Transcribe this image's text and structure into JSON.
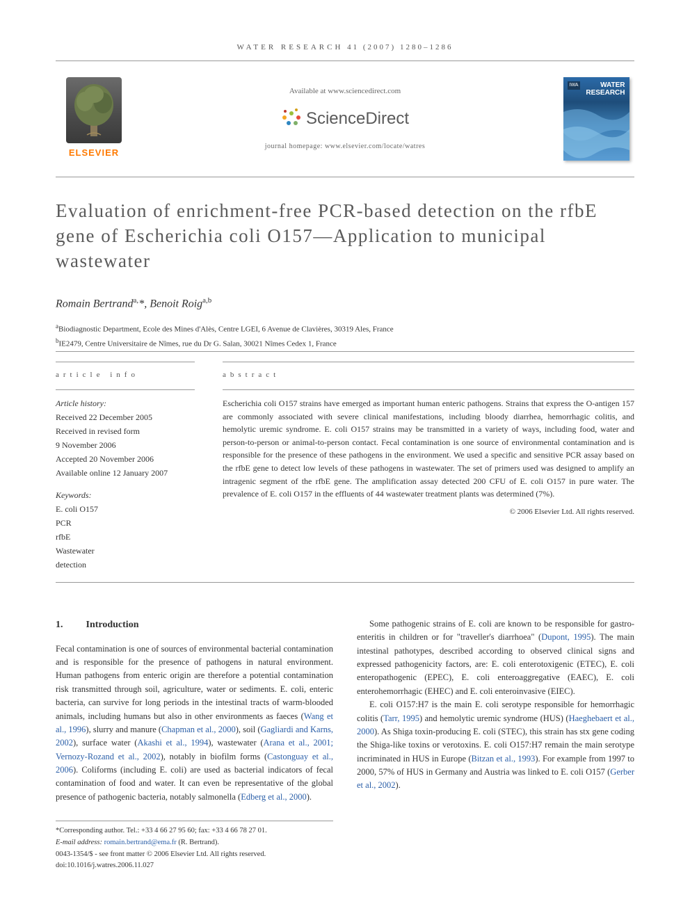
{
  "header": {
    "journal_name": "WATER RESEARCH",
    "citation": "41 (2007) 1280–1286"
  },
  "banner": {
    "elsevier_label": "ELSEVIER",
    "available_text": "Available at www.sciencedirect.com",
    "sciencedirect_label": "ScienceDirect",
    "homepage_text": "journal homepage: www.elsevier.com/locate/watres",
    "cover_iwa": "IWA",
    "cover_title": "WATER\nRESEARCH",
    "sd_dot_colors": [
      "#9bbf3b",
      "#f5a623",
      "#e74c3c",
      "#2e86c1",
      "#7fb069",
      "#c0392b",
      "#d4a017"
    ]
  },
  "article": {
    "title": "Evaluation of enrichment-free PCR-based detection on the rfbE gene of Escherichia coli O157—Application to municipal wastewater",
    "authors_html": "Romain Bertrand<sup>a,</sup>*, Benoit Roig<sup>a,b</sup>",
    "affiliations": [
      {
        "sup": "a",
        "text": "Biodiagnostic Department, Ecole des Mines d'Alès, Centre LGEI, 6 Avenue de Clavières, 30319 Ales, France"
      },
      {
        "sup": "b",
        "text": "IE2479, Centre Universitaire de Nîmes, rue du Dr G. Salan, 30021 Nîmes Cedex 1, France"
      }
    ]
  },
  "info": {
    "heading_article": "article info",
    "heading_abstract": "abstract",
    "history_label": "Article history:",
    "history": [
      "Received 22 December 2005",
      "Received in revised form",
      "9 November 2006",
      "Accepted 20 November 2006",
      "Available online 12 January 2007"
    ],
    "keywords_label": "Keywords:",
    "keywords": [
      "E. coli O157",
      "PCR",
      "rfbE",
      "Wastewater",
      "detection"
    ],
    "abstract": "Escherichia coli O157 strains have emerged as important human enteric pathogens. Strains that express the O-antigen 157 are commonly associated with severe clinical manifestations, including bloody diarrhea, hemorrhagic colitis, and hemolytic uremic syndrome. E. coli O157 strains may be transmitted in a variety of ways, including food, water and person-to-person or animal-to-person contact. Fecal contamination is one source of environmental contamination and is responsible for the presence of these pathogens in the environment. We used a specific and sensitive PCR assay based on the rfbE gene to detect low levels of these pathogens in wastewater. The set of primers used was designed to amplify an intragenic segment of the rfbE gene. The amplification assay detected 200 CFU of E. coli O157 in pure water. The prevalence of E. coli O157 in the effluents of 44 wastewater treatment plants was determined (7%).",
    "copyright": "© 2006 Elsevier Ltd. All rights reserved."
  },
  "body": {
    "section_number": "1.",
    "section_title": "Introduction",
    "col1_para1_pre": "Fecal contamination is one of sources of environmental bacterial contamination and is responsible for the presence of pathogens in natural environment. Human pathogens from enteric origin are therefore a potential contamination risk transmitted through soil, agriculture, water or sediments. E. coli, enteric bacteria, can survive for long periods in the intestinal tracts of warm-blooded animals, including humans but also in other environments as faeces (",
    "col1_cite1": "Wang et al., 1996",
    "col1_mid1": "), slurry and manure (",
    "col1_cite2": "Chapman et al., 2000",
    "col1_mid2": "), soil (",
    "col1_cite3": "Gagliardi and Karns, 2002",
    "col1_mid3": "), surface water (",
    "col1_cite4": "Akashi et al., 1994",
    "col1_mid4": "), wastewater (",
    "col1_cite5": "Arana et al., 2001; Vernozy-Rozand et al., 2002",
    "col1_mid5": "), notably in biofilm forms (",
    "col1_cite6": "Castonguay et al., 2006",
    "col1_mid6": "). Coliforms (including E. coli) are used as bacterial indicators of fecal contamination of food and water. It can even be representative of the global presence of pathogenic bacteria, notably salmonella (",
    "col1_cite7": "Edberg et al., 2000",
    "col1_end": ").",
    "col2_para1_pre": "Some pathogenic strains of E. coli are known to be responsible for gastro-enteritis in children or for \"traveller's diarrhoea\" (",
    "col2_cite1": "Dupont, 1995",
    "col2_para1_post": "). The main intestinal pathotypes, described according to observed clinical signs and expressed pathogenicity factors, are: E. coli enterotoxigenic (ETEC), E. coli enteropathogenic (EPEC), E. coli enteroaggregative (EAEC), E. coli enterohemorrhagic (EHEC) and E. coli enteroinvasive (EIEC).",
    "col2_para2_pre": "E. coli O157:H7 is the main E. coli serotype responsible for hemorrhagic colitis (",
    "col2_cite2": "Tarr, 1995",
    "col2_mid1": ") and hemolytic uremic syndrome (HUS) (",
    "col2_cite3": "Haeghebaert et al., 2000",
    "col2_mid2": "). As Shiga toxin-producing E. coli (STEC), this strain has stx gene coding the Shiga-like toxins or verotoxins. E. coli O157:H7 remain the main serotype incriminated in HUS in Europe (",
    "col2_cite4": "Bitzan et al., 1993",
    "col2_mid3": "). For example from 1997 to 2000, 57% of HUS in Germany and Austria was linked to E. coli O157 (",
    "col2_cite5": "Gerber et al., 2002",
    "col2_end": ")."
  },
  "footnotes": {
    "corresponding": "*Corresponding author. Tel.: +33 4 66 27 95 60; fax: +33 4 66 78 27 01.",
    "email_label": "E-mail address: ",
    "email": "romain.bertrand@ema.fr",
    "email_post": " (R. Bertrand).",
    "issn": "0043-1354/$ - see front matter © 2006 Elsevier Ltd. All rights reserved.",
    "doi": "doi:10.1016/j.watres.2006.11.027"
  },
  "colors": {
    "link": "#2b5fa8",
    "elsevier_orange": "#ff7a00",
    "rule": "#999999",
    "text": "#333333"
  }
}
